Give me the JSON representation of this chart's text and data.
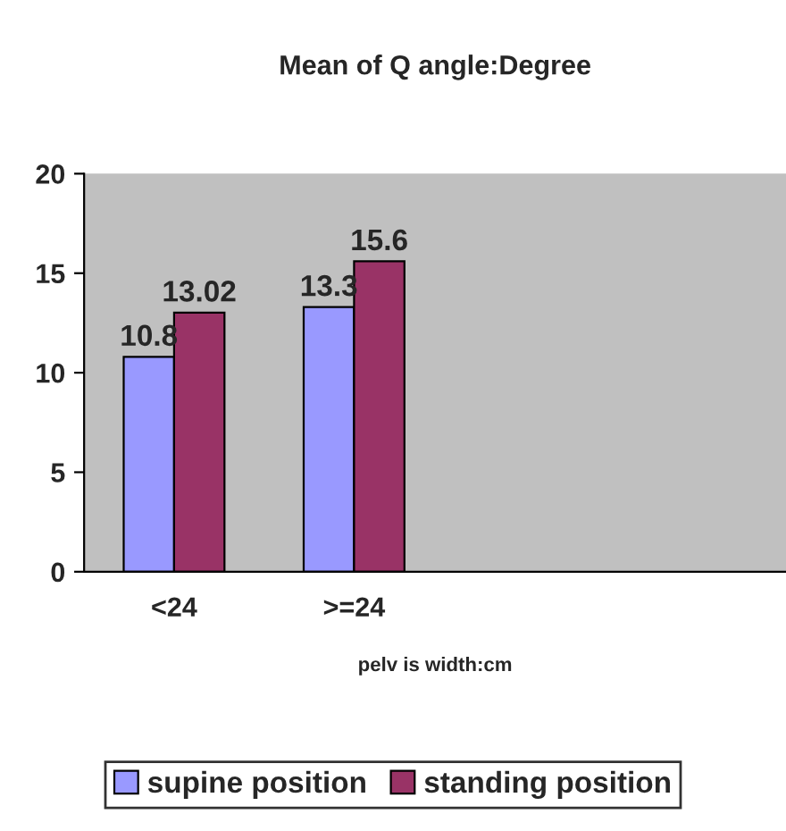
{
  "chart_data": {
    "type": "bar",
    "title": "Mean of Q angle:Degree",
    "xlabel": "pelv is width:cm",
    "categories": [
      "<24",
      ">=24",
      null,
      null
    ],
    "series": [
      {
        "name": "supine position",
        "color": "#9999ff",
        "values": [
          10.8,
          13.3,
          null,
          null
        ]
      },
      {
        "name": "standing position",
        "color": "#993366",
        "values": [
          13.02,
          15.6,
          null,
          null
        ]
      }
    ],
    "ylim": [
      0,
      20
    ],
    "yticks": [
      0,
      5,
      10,
      15,
      20
    ],
    "grid": false,
    "legend": "bottom",
    "data_labels": true
  }
}
